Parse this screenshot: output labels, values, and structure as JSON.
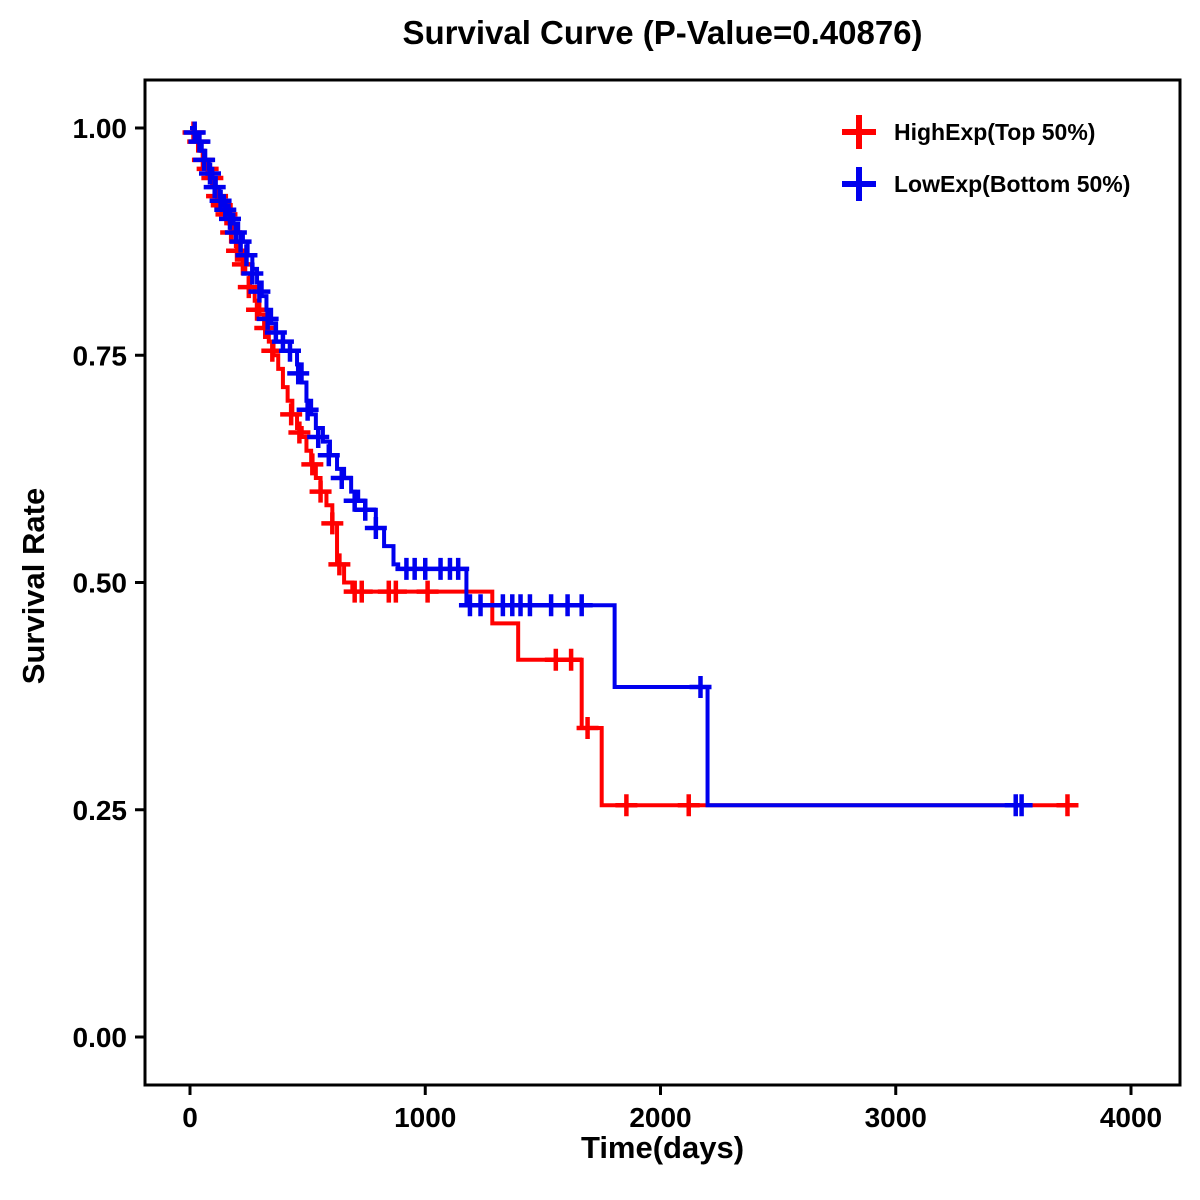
{
  "chart_data": {
    "type": "line",
    "subtype": "kaplan-meier-step",
    "title": "Survival Curve (P-Value=0.40876)",
    "xlabel": "Time(days)",
    "ylabel": "Survival Rate",
    "xlim": [
      0,
      4000
    ],
    "ylim": [
      0.0,
      1.0
    ],
    "x_ticks": [
      0,
      1000,
      2000,
      3000,
      4000
    ],
    "y_ticks": [
      "0.00",
      "0.25",
      "0.50",
      "0.75",
      "1.00"
    ],
    "grid": false,
    "legend_position": "top-right-inside",
    "p_value": 0.40876,
    "series": [
      {
        "name": "HighExp(Top 50%)",
        "color": "#ff0000",
        "steps": [
          [
            0,
            1.0
          ],
          [
            15,
            0.995
          ],
          [
            30,
            0.985
          ],
          [
            45,
            0.975
          ],
          [
            60,
            0.965
          ],
          [
            75,
            0.955
          ],
          [
            90,
            0.945
          ],
          [
            105,
            0.935
          ],
          [
            120,
            0.925
          ],
          [
            135,
            0.915
          ],
          [
            150,
            0.905
          ],
          [
            165,
            0.895
          ],
          [
            180,
            0.885
          ],
          [
            195,
            0.87
          ],
          [
            215,
            0.855
          ],
          [
            235,
            0.84
          ],
          [
            255,
            0.825
          ],
          [
            275,
            0.81
          ],
          [
            295,
            0.795
          ],
          [
            315,
            0.78
          ],
          [
            335,
            0.765
          ],
          [
            355,
            0.75
          ],
          [
            375,
            0.735
          ],
          [
            395,
            0.715
          ],
          [
            415,
            0.7
          ],
          [
            435,
            0.685
          ],
          [
            455,
            0.67
          ],
          [
            475,
            0.66
          ],
          [
            495,
            0.645
          ],
          [
            515,
            0.63
          ],
          [
            535,
            0.615
          ],
          [
            555,
            0.6
          ],
          [
            580,
            0.585
          ],
          [
            605,
            0.565
          ],
          [
            625,
            0.52
          ],
          [
            655,
            0.5
          ],
          [
            690,
            0.49
          ],
          [
            1285,
            0.455
          ],
          [
            1395,
            0.415
          ],
          [
            1665,
            0.34
          ],
          [
            1750,
            0.255
          ],
          [
            3730,
            0.255
          ]
        ],
        "censors": [
          [
            15,
            0.995
          ],
          [
            35,
            0.985
          ],
          [
            55,
            0.965
          ],
          [
            75,
            0.955
          ],
          [
            95,
            0.945
          ],
          [
            115,
            0.925
          ],
          [
            135,
            0.915
          ],
          [
            155,
            0.905
          ],
          [
            175,
            0.885
          ],
          [
            200,
            0.865
          ],
          [
            225,
            0.85
          ],
          [
            250,
            0.825
          ],
          [
            285,
            0.8
          ],
          [
            320,
            0.78
          ],
          [
            350,
            0.755
          ],
          [
            430,
            0.685
          ],
          [
            465,
            0.665
          ],
          [
            520,
            0.63
          ],
          [
            555,
            0.6
          ],
          [
            605,
            0.565
          ],
          [
            635,
            0.52
          ],
          [
            700,
            0.49
          ],
          [
            730,
            0.49
          ],
          [
            845,
            0.49
          ],
          [
            875,
            0.49
          ],
          [
            1010,
            0.49
          ],
          [
            1555,
            0.415
          ],
          [
            1620,
            0.415
          ],
          [
            1690,
            0.34
          ],
          [
            1855,
            0.255
          ],
          [
            2120,
            0.255
          ],
          [
            3730,
            0.255
          ]
        ]
      },
      {
        "name": "LowExp(Bottom 50%)",
        "color": "#0000ee",
        "steps": [
          [
            0,
            1.0
          ],
          [
            20,
            0.995
          ],
          [
            35,
            0.985
          ],
          [
            50,
            0.975
          ],
          [
            65,
            0.965
          ],
          [
            80,
            0.955
          ],
          [
            95,
            0.945
          ],
          [
            110,
            0.935
          ],
          [
            125,
            0.925
          ],
          [
            145,
            0.915
          ],
          [
            165,
            0.905
          ],
          [
            185,
            0.895
          ],
          [
            205,
            0.885
          ],
          [
            225,
            0.875
          ],
          [
            245,
            0.86
          ],
          [
            265,
            0.845
          ],
          [
            285,
            0.83
          ],
          [
            305,
            0.815
          ],
          [
            325,
            0.8
          ],
          [
            345,
            0.785
          ],
          [
            365,
            0.775
          ],
          [
            395,
            0.765
          ],
          [
            425,
            0.755
          ],
          [
            455,
            0.74
          ],
          [
            475,
            0.72
          ],
          [
            495,
            0.7
          ],
          [
            515,
            0.685
          ],
          [
            535,
            0.67
          ],
          [
            565,
            0.655
          ],
          [
            595,
            0.64
          ],
          [
            625,
            0.625
          ],
          [
            655,
            0.615
          ],
          [
            685,
            0.6
          ],
          [
            715,
            0.59
          ],
          [
            745,
            0.58
          ],
          [
            790,
            0.56
          ],
          [
            825,
            0.54
          ],
          [
            865,
            0.52
          ],
          [
            885,
            0.515
          ],
          [
            1175,
            0.475
          ],
          [
            1805,
            0.385
          ],
          [
            2200,
            0.255
          ],
          [
            3550,
            0.255
          ]
        ],
        "censors": [
          [
            20,
            0.995
          ],
          [
            40,
            0.985
          ],
          [
            60,
            0.965
          ],
          [
            85,
            0.95
          ],
          [
            105,
            0.935
          ],
          [
            130,
            0.92
          ],
          [
            150,
            0.91
          ],
          [
            170,
            0.9
          ],
          [
            195,
            0.885
          ],
          [
            215,
            0.875
          ],
          [
            240,
            0.86
          ],
          [
            265,
            0.84
          ],
          [
            295,
            0.82
          ],
          [
            330,
            0.79
          ],
          [
            365,
            0.775
          ],
          [
            395,
            0.765
          ],
          [
            425,
            0.755
          ],
          [
            460,
            0.73
          ],
          [
            500,
            0.69
          ],
          [
            545,
            0.66
          ],
          [
            590,
            0.64
          ],
          [
            645,
            0.615
          ],
          [
            700,
            0.59
          ],
          [
            745,
            0.58
          ],
          [
            790,
            0.56
          ],
          [
            920,
            0.515
          ],
          [
            955,
            0.515
          ],
          [
            1000,
            0.515
          ],
          [
            1065,
            0.515
          ],
          [
            1105,
            0.515
          ],
          [
            1140,
            0.515
          ],
          [
            1190,
            0.475
          ],
          [
            1235,
            0.475
          ],
          [
            1330,
            0.475
          ],
          [
            1370,
            0.475
          ],
          [
            1405,
            0.475
          ],
          [
            1445,
            0.475
          ],
          [
            1535,
            0.475
          ],
          [
            1605,
            0.475
          ],
          [
            1665,
            0.475
          ],
          [
            2170,
            0.385
          ],
          [
            3510,
            0.255
          ],
          [
            3535,
            0.255
          ]
        ]
      }
    ]
  }
}
